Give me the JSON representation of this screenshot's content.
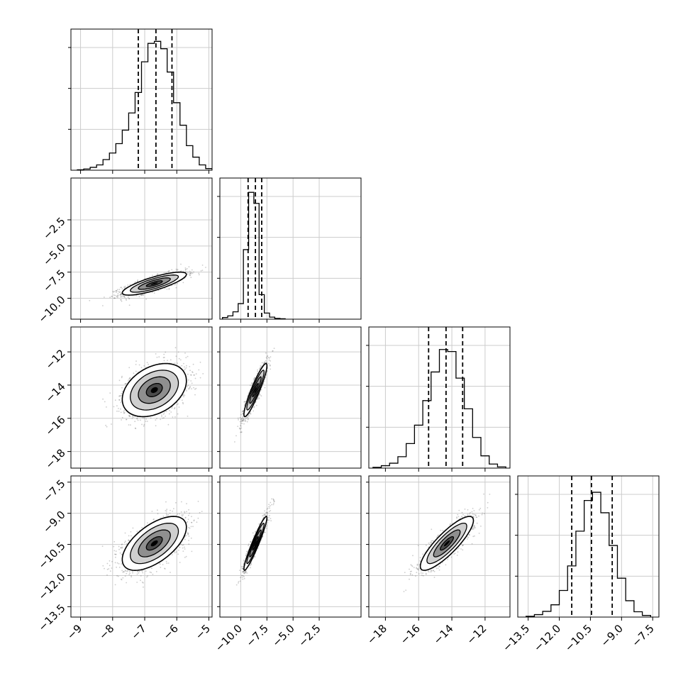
{
  "chart_data": {
    "type": "corner",
    "parameters": [
      {
        "range": [
          -9.3,
          -4.9
        ],
        "ticks": [
          -9,
          -8,
          -7,
          -6,
          -5
        ],
        "tick_labels": [
          "−9",
          "−8",
          "−7",
          "−6",
          "−5"
        ],
        "quantiles": [
          -7.2,
          -6.65,
          -6.15
        ],
        "hist_ymax": 3.45,
        "hist": [
          [
            -9.0,
            0.01
          ],
          [
            -8.8,
            0.03
          ],
          [
            -8.6,
            0.07
          ],
          [
            -8.4,
            0.13
          ],
          [
            -8.2,
            0.26
          ],
          [
            -8.0,
            0.42
          ],
          [
            -7.8,
            0.65
          ],
          [
            -7.6,
            0.98
          ],
          [
            -7.4,
            1.4
          ],
          [
            -7.2,
            1.9
          ],
          [
            -7.0,
            2.65
          ],
          [
            -6.8,
            3.1
          ],
          [
            -6.6,
            3.15
          ],
          [
            -6.4,
            2.97
          ],
          [
            -6.2,
            2.4
          ],
          [
            -6.0,
            1.65
          ],
          [
            -5.8,
            1.1
          ],
          [
            -5.6,
            0.6
          ],
          [
            -5.4,
            0.32
          ],
          [
            -5.2,
            0.13
          ],
          [
            -5.0,
            0.04
          ]
        ]
      },
      {
        "range": [
          -12,
          1.5
        ],
        "ticks": [
          -10.0,
          -7.5,
          -5.0,
          -2.5
        ],
        "tick_labels": [
          "−10.0",
          "−7.5",
          "−5.0",
          "−2.5"
        ],
        "quantiles": [
          -9.3,
          -8.6,
          -8.0
        ],
        "hist_ymax": 3.45,
        "hist": [
          [
            -11.5,
            0.04
          ],
          [
            -11.0,
            0.08
          ],
          [
            -10.5,
            0.18
          ],
          [
            -10.0,
            0.38
          ],
          [
            -9.5,
            1.7
          ],
          [
            -9.0,
            3.1
          ],
          [
            -8.5,
            2.83
          ],
          [
            -8.0,
            0.6
          ],
          [
            -7.5,
            0.15
          ],
          [
            -7.0,
            0.05
          ],
          [
            -6.5,
            0.02
          ],
          [
            -6.0,
            0.01
          ]
        ]
      },
      {
        "range": [
          -19.0,
          -10.5
        ],
        "ticks": [
          -18,
          -16,
          -14,
          -12
        ],
        "tick_labels": [
          "−18",
          "−16",
          "−14",
          "−12"
        ],
        "quantiles": [
          -15.4,
          -14.35,
          -13.35
        ],
        "hist_ymax": 3.45,
        "hist": [
          [
            -18.5,
            0.02
          ],
          [
            -18.0,
            0.06
          ],
          [
            -17.5,
            0.12
          ],
          [
            -17.0,
            0.28
          ],
          [
            -16.5,
            0.6
          ],
          [
            -16.0,
            1.05
          ],
          [
            -15.5,
            1.65
          ],
          [
            -15.0,
            2.35
          ],
          [
            -14.5,
            2.9
          ],
          [
            -14.0,
            2.85
          ],
          [
            -13.5,
            2.2
          ],
          [
            -13.0,
            1.45
          ],
          [
            -12.5,
            0.75
          ],
          [
            -12.0,
            0.3
          ],
          [
            -11.5,
            0.1
          ],
          [
            -11.0,
            0.03
          ]
        ]
      },
      {
        "range": [
          -14.0,
          -7.2
        ],
        "ticks": [
          -13.5,
          -12.0,
          -10.5,
          -9.0,
          -7.5
        ],
        "tick_labels": [
          "−13.5",
          "−12.0",
          "−10.5",
          "−9.0",
          "−7.5"
        ],
        "quantiles": [
          -11.4,
          -10.45,
          -9.45
        ],
        "hist_ymax": 3.45,
        "hist": [
          [
            -13.4,
            0.02
          ],
          [
            -13.0,
            0.06
          ],
          [
            -12.6,
            0.14
          ],
          [
            -12.2,
            0.3
          ],
          [
            -11.8,
            0.65
          ],
          [
            -11.4,
            1.25
          ],
          [
            -11.0,
            2.1
          ],
          [
            -10.6,
            2.85
          ],
          [
            -10.2,
            3.05
          ],
          [
            -9.8,
            2.55
          ],
          [
            -9.4,
            1.75
          ],
          [
            -9.0,
            0.95
          ],
          [
            -8.6,
            0.4
          ],
          [
            -8.2,
            0.13
          ],
          [
            -7.8,
            0.04
          ]
        ]
      }
    ],
    "y_axis_ticks": {
      "1": {
        "ticks": [
          -10.0,
          -7.5,
          -5.0,
          -2.5
        ],
        "tick_labels": [
          "−10.0",
          "−7.5",
          "−5.0",
          "−2.5"
        ]
      },
      "2": {
        "ticks": [
          -18,
          -16,
          -14,
          -12
        ],
        "tick_labels": [
          "−18",
          "−16",
          "−14",
          "−12"
        ]
      },
      "3": {
        "ticks": [
          -13.5,
          -12.0,
          -10.5,
          -9.0,
          -7.5
        ],
        "tick_labels": [
          "−13.5",
          "−12.0",
          "−10.5",
          "−9.0",
          "−7.5"
        ]
      }
    },
    "pairs": [
      {
        "row": 1,
        "col": 0,
        "mean": [
          -6.7,
          -8.6
        ],
        "sd": [
          0.5,
          0.55
        ],
        "corr": 0.8
      },
      {
        "row": 2,
        "col": 0,
        "mean": [
          -6.7,
          -14.3
        ],
        "sd": [
          0.5,
          0.8
        ],
        "corr": 0.35
      },
      {
        "row": 2,
        "col": 1,
        "mean": [
          -8.6,
          -14.3
        ],
        "sd": [
          0.55,
          0.8
        ],
        "corr": 0.92
      },
      {
        "row": 3,
        "col": 0,
        "mean": [
          -6.7,
          -10.45
        ],
        "sd": [
          0.5,
          0.65
        ],
        "corr": 0.6
      },
      {
        "row": 3,
        "col": 1,
        "mean": [
          -8.6,
          -10.45
        ],
        "sd": [
          0.55,
          0.65
        ],
        "corr": 0.95
      },
      {
        "row": 3,
        "col": 2,
        "mean": [
          -14.3,
          -10.45
        ],
        "sd": [
          0.8,
          0.65
        ],
        "corr": 0.85
      }
    ],
    "contour_levels_sigma": [
      0.5,
      1.0,
      1.5,
      2.0
    ],
    "grid": true,
    "colors": {
      "hist": "#000000",
      "scatter": "#555555",
      "contour": "#000000",
      "grid": "#cccccc"
    }
  }
}
